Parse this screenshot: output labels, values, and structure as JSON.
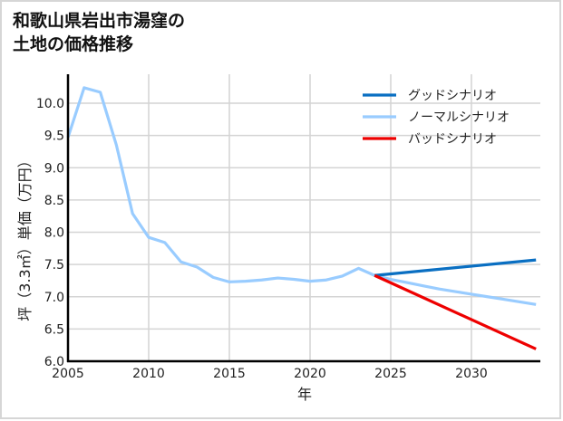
{
  "title_line1": "和歌山県岩出市湯窪の",
  "title_line2": "土地の価格推移",
  "colors": {
    "good": "#0a6fc2",
    "normal": "#99ccff",
    "bad": "#ee0000",
    "grid": "#d4d4d4",
    "axis": "#000000"
  },
  "chart_data": {
    "type": "line",
    "title": "和歌山県岩出市湯窪の土地の価格推移",
    "xlabel": "年",
    "ylabel": "坪（3.3㎡）単価（万円）",
    "xlim": [
      2005,
      2034
    ],
    "ylim": [
      6.0,
      10.4
    ],
    "xticks": [
      2005,
      2010,
      2015,
      2020,
      2025,
      2030
    ],
    "yticks": [
      6.0,
      6.5,
      7.0,
      7.5,
      8.0,
      8.5,
      9.0,
      9.5,
      10.0
    ],
    "ytick_labels": [
      "6.0",
      "6.5",
      "7.0",
      "7.5",
      "8.0",
      "8.5",
      "9.0",
      "9.5",
      "10.0"
    ],
    "grid": true,
    "legend_position": "upper right",
    "series": [
      {
        "name": "グッドシナリオ",
        "color": "#0a6fc2",
        "x": [
          2024,
          2034
        ],
        "values": [
          7.33,
          7.57
        ]
      },
      {
        "name": "ノーマルシナリオ",
        "color": "#99ccff",
        "x": [
          2005,
          2006,
          2007,
          2008,
          2009,
          2010,
          2011,
          2012,
          2013,
          2014,
          2015,
          2016,
          2017,
          2018,
          2019,
          2020,
          2021,
          2022,
          2023,
          2024,
          2025,
          2026,
          2027,
          2028,
          2029,
          2030,
          2031,
          2032,
          2033,
          2034
        ],
        "values": [
          9.47,
          10.24,
          10.17,
          9.35,
          8.29,
          7.92,
          7.84,
          7.54,
          7.46,
          7.3,
          7.23,
          7.24,
          7.26,
          7.29,
          7.27,
          7.24,
          7.26,
          7.32,
          7.44,
          7.33,
          7.27,
          7.22,
          7.17,
          7.12,
          7.08,
          7.04,
          7.0,
          6.96,
          6.92,
          6.88
        ]
      },
      {
        "name": "バッドシナリオ",
        "color": "#ee0000",
        "x": [
          2024,
          2034
        ],
        "values": [
          7.33,
          6.19
        ]
      }
    ]
  }
}
